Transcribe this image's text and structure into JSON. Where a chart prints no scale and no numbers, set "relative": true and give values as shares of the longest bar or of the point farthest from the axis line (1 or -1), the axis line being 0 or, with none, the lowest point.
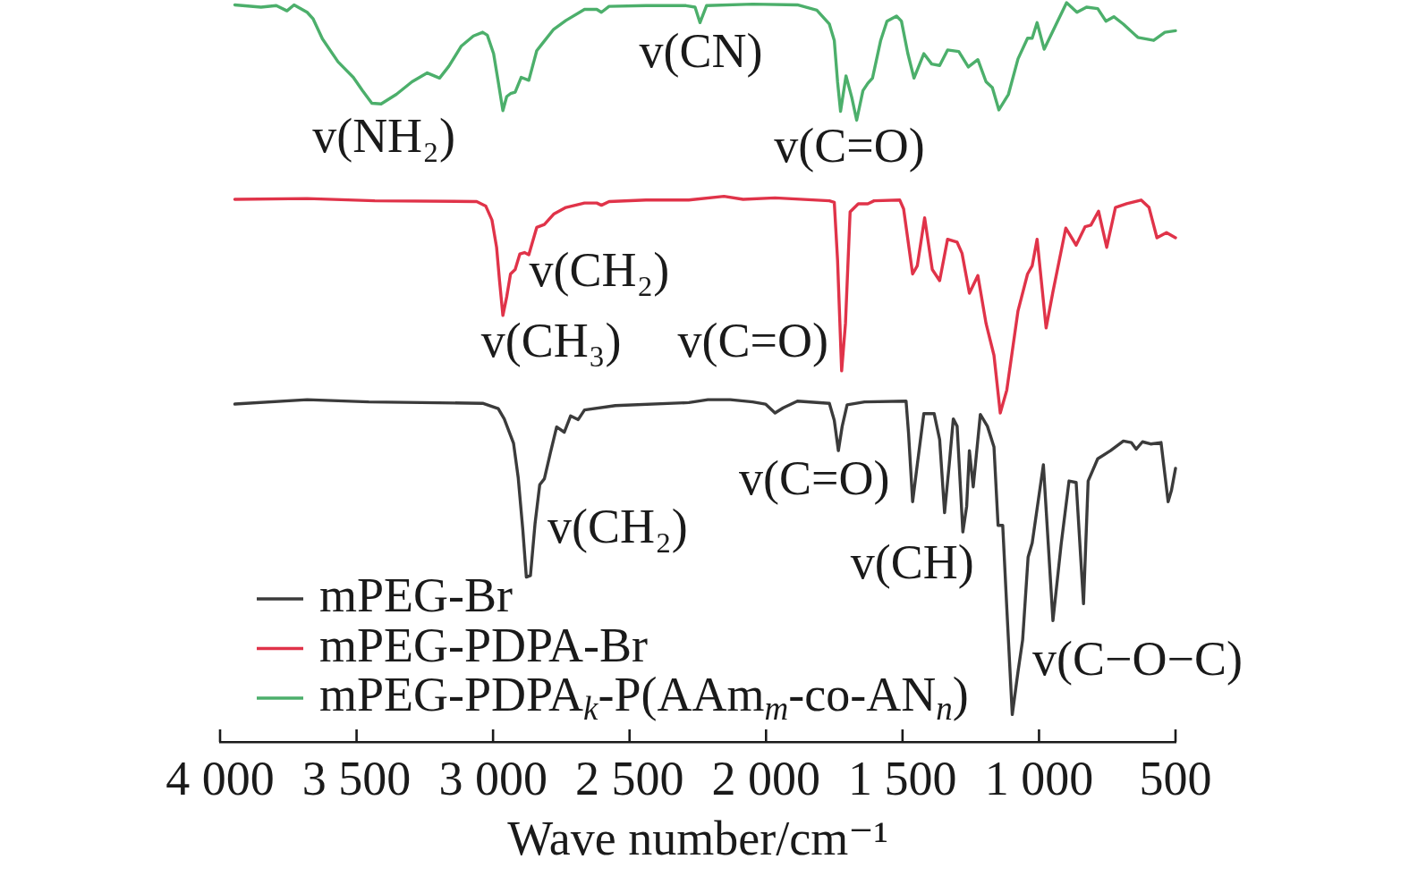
{
  "chart_data": {
    "type": "line",
    "relative": true,
    "xlabel": "Wave number/cm⁻¹",
    "xlim": [
      4000,
      500
    ],
    "xticks": [
      {
        "value": 4000,
        "label": "4 000"
      },
      {
        "value": 3500,
        "label": "3 500"
      },
      {
        "value": 3000,
        "label": "3 000"
      },
      {
        "value": 2500,
        "label": "2 500"
      },
      {
        "value": 2000,
        "label": "2 000"
      },
      {
        "value": 1500,
        "label": "1 500"
      },
      {
        "value": 1000,
        "label": "1 000"
      },
      500
    ],
    "tick_labels": "x",
    "legend": "bottom left",
    "series": [
      {
        "name": "mPEG-Br",
        "color": "#3b3b3b",
        "x": [
          3946,
          3681,
          3455,
          3038,
          2981,
          2959,
          2925,
          2908,
          2891,
          2878,
          2863,
          2846,
          2829,
          2812,
          2790,
          2767,
          2739,
          2716,
          2688,
          2665,
          2552,
          2283,
          2213,
          2131,
          2049,
          2002,
          1967,
          1937,
          1885,
          1768,
          1750,
          1735,
          1721,
          1703,
          1639,
          1487,
          1478,
          1463,
          1446,
          1422,
          1384,
          1364,
          1346,
          1329,
          1314,
          1300,
          1279,
          1265,
          1255,
          1241,
          1215,
          1189,
          1165,
          1150,
          1133,
          1118,
          1098,
          1077,
          1060,
          1040,
          1025,
          984,
          966,
          949,
          919,
          890,
          864,
          837,
          820,
          785,
          738,
          691,
          662,
          644,
          621,
          591,
          553,
          527,
          515,
          500
        ],
        "values": [
          0.457,
          0.463,
          0.46,
          0.458,
          0.451,
          0.437,
          0.404,
          0.358,
          0.287,
          0.223,
          0.225,
          0.296,
          0.348,
          0.356,
          0.391,
          0.426,
          0.419,
          0.441,
          0.436,
          0.449,
          0.455,
          0.459,
          0.463,
          0.463,
          0.46,
          0.457,
          0.445,
          0.452,
          0.461,
          0.458,
          0.435,
          0.394,
          0.427,
          0.456,
          0.46,
          0.461,
          0.418,
          0.325,
          0.375,
          0.444,
          0.444,
          0.409,
          0.31,
          0.375,
          0.437,
          0.427,
          0.284,
          0.319,
          0.394,
          0.345,
          0.443,
          0.427,
          0.399,
          0.293,
          0.293,
          0.181,
          0.037,
          0.095,
          0.138,
          0.25,
          0.269,
          0.375,
          0.267,
          0.164,
          0.267,
          0.353,
          0.351,
          0.187,
          0.353,
          0.383,
          0.394,
          0.407,
          0.405,
          0.396,
          0.406,
          0.403,
          0.405,
          0.325,
          0.34,
          0.37
        ]
      },
      {
        "name": "mPEG-PDPA-Br",
        "color": "#e03349",
        "x": [
          3946,
          3681,
          3433,
          3060,
          3027,
          3004,
          2987,
          2976,
          2964,
          2950,
          2936,
          2919,
          2902,
          2885,
          2869,
          2840,
          2812,
          2778,
          2733,
          2665,
          2620,
          2603,
          2575,
          2440,
          2283,
          2154,
          2084,
          1967,
          1768,
          1750,
          1738,
          1723,
          1709,
          1692,
          1662,
          1627,
          1604,
          1510,
          1496,
          1463,
          1446,
          1419,
          1391,
          1364,
          1335,
          1300,
          1282,
          1255,
          1224,
          1194,
          1165,
          1142,
          1118,
          1077,
          1042,
          1025,
          1007,
          974,
          949,
          902,
          864,
          831,
          810,
          782,
          752,
          720,
          679,
          626,
          597,
          568,
          533,
          500
        ],
        "values": [
          0.734,
          0.735,
          0.732,
          0.731,
          0.725,
          0.706,
          0.669,
          0.623,
          0.577,
          0.602,
          0.633,
          0.639,
          0.66,
          0.662,
          0.659,
          0.696,
          0.7,
          0.714,
          0.723,
          0.729,
          0.729,
          0.726,
          0.731,
          0.733,
          0.733,
          0.738,
          0.734,
          0.736,
          0.732,
          0.73,
          0.652,
          0.502,
          0.566,
          0.717,
          0.728,
          0.728,
          0.732,
          0.733,
          0.721,
          0.633,
          0.644,
          0.709,
          0.639,
          0.624,
          0.68,
          0.676,
          0.661,
          0.607,
          0.631,
          0.566,
          0.523,
          0.445,
          0.476,
          0.583,
          0.633,
          0.644,
          0.68,
          0.56,
          0.609,
          0.695,
          0.672,
          0.697,
          0.699,
          0.718,
          0.669,
          0.723,
          0.728,
          0.733,
          0.723,
          0.682,
          0.689,
          0.682
        ]
      },
      {
        "name": "mPEG-PDPA$_{k}$-P(AAm$_{m}$-co-AN$_{n}$)",
        "color": "#4caf6b",
        "x": [
          3946,
          3850,
          3794,
          3755,
          3729,
          3681,
          3659,
          3625,
          3568,
          3512,
          3478,
          3444,
          3410,
          3354,
          3297,
          3241,
          3196,
          3162,
          3117,
          3072,
          3038,
          3021,
          2998,
          2981,
          2964,
          2950,
          2936,
          2919,
          2897,
          2869,
          2840,
          2823,
          2778,
          2733,
          2665,
          2620,
          2603,
          2575,
          2440,
          2293,
          2260,
          2242,
          2218,
          2049,
          1885,
          1814,
          1768,
          1750,
          1738,
          1727,
          1707,
          1686,
          1668,
          1645,
          1627,
          1610,
          1580,
          1557,
          1522,
          1504,
          1481,
          1458,
          1422,
          1393,
          1364,
          1335,
          1294,
          1259,
          1224,
          1194,
          1171,
          1147,
          1112,
          1077,
          1042,
          1025,
          1007,
          981,
          937,
          899,
          861,
          826,
          785,
          755,
          726,
          691,
          638,
          580,
          539,
          500
        ],
        "values": [
          0.997,
          0.994,
          0.996,
          0.989,
          0.997,
          0.987,
          0.978,
          0.951,
          0.92,
          0.899,
          0.881,
          0.864,
          0.863,
          0.876,
          0.893,
          0.905,
          0.898,
          0.914,
          0.941,
          0.955,
          0.96,
          0.956,
          0.931,
          0.893,
          0.854,
          0.873,
          0.877,
          0.879,
          0.899,
          0.895,
          0.935,
          0.943,
          0.964,
          0.976,
          0.991,
          0.991,
          0.987,
          0.995,
          0.996,
          0.996,
          0.994,
          0.973,
          0.996,
          0.998,
          0.997,
          0.99,
          0.971,
          0.949,
          0.893,
          0.853,
          0.901,
          0.872,
          0.841,
          0.881,
          0.891,
          0.898,
          0.949,
          0.975,
          0.982,
          0.975,
          0.932,
          0.898,
          0.931,
          0.917,
          0.915,
          0.936,
          0.934,
          0.913,
          0.923,
          0.893,
          0.885,
          0.855,
          0.876,
          0.924,
          0.952,
          0.952,
          0.973,
          0.937,
          0.971,
          1,
          0.987,
          0.994,
          0.992,
          0.975,
          0.981,
          0.971,
          0.953,
          0.949,
          0.96,
          0.962
        ]
      }
    ],
    "annotations": [
      {
        "text": "v(NH₂)",
        "x": 3410,
        "y": 0.863
      },
      {
        "text": "v(CN)",
        "x": 2242,
        "y": 0.973
      },
      {
        "text": "v(C=O)",
        "x": 1668,
        "y": 0.841
      },
      {
        "text": "v(CH₂)",
        "x": 2919,
        "y": 0.639
      },
      {
        "text": "v(CH₃)",
        "x": 2964,
        "y": 0.577
      },
      {
        "text": "v(C=O)",
        "x": 1723,
        "y": 0.502
      },
      {
        "text": "v(C=O)",
        "x": 1735,
        "y": 0.394
      },
      {
        "text": "v(CH₂)",
        "x": 2878,
        "y": 0.223
      },
      {
        "text": "v(CH)",
        "x": 1346,
        "y": 0.31
      },
      {
        "text": "v(C−O−C)",
        "x": 1098,
        "y": 0.037
      }
    ]
  }
}
